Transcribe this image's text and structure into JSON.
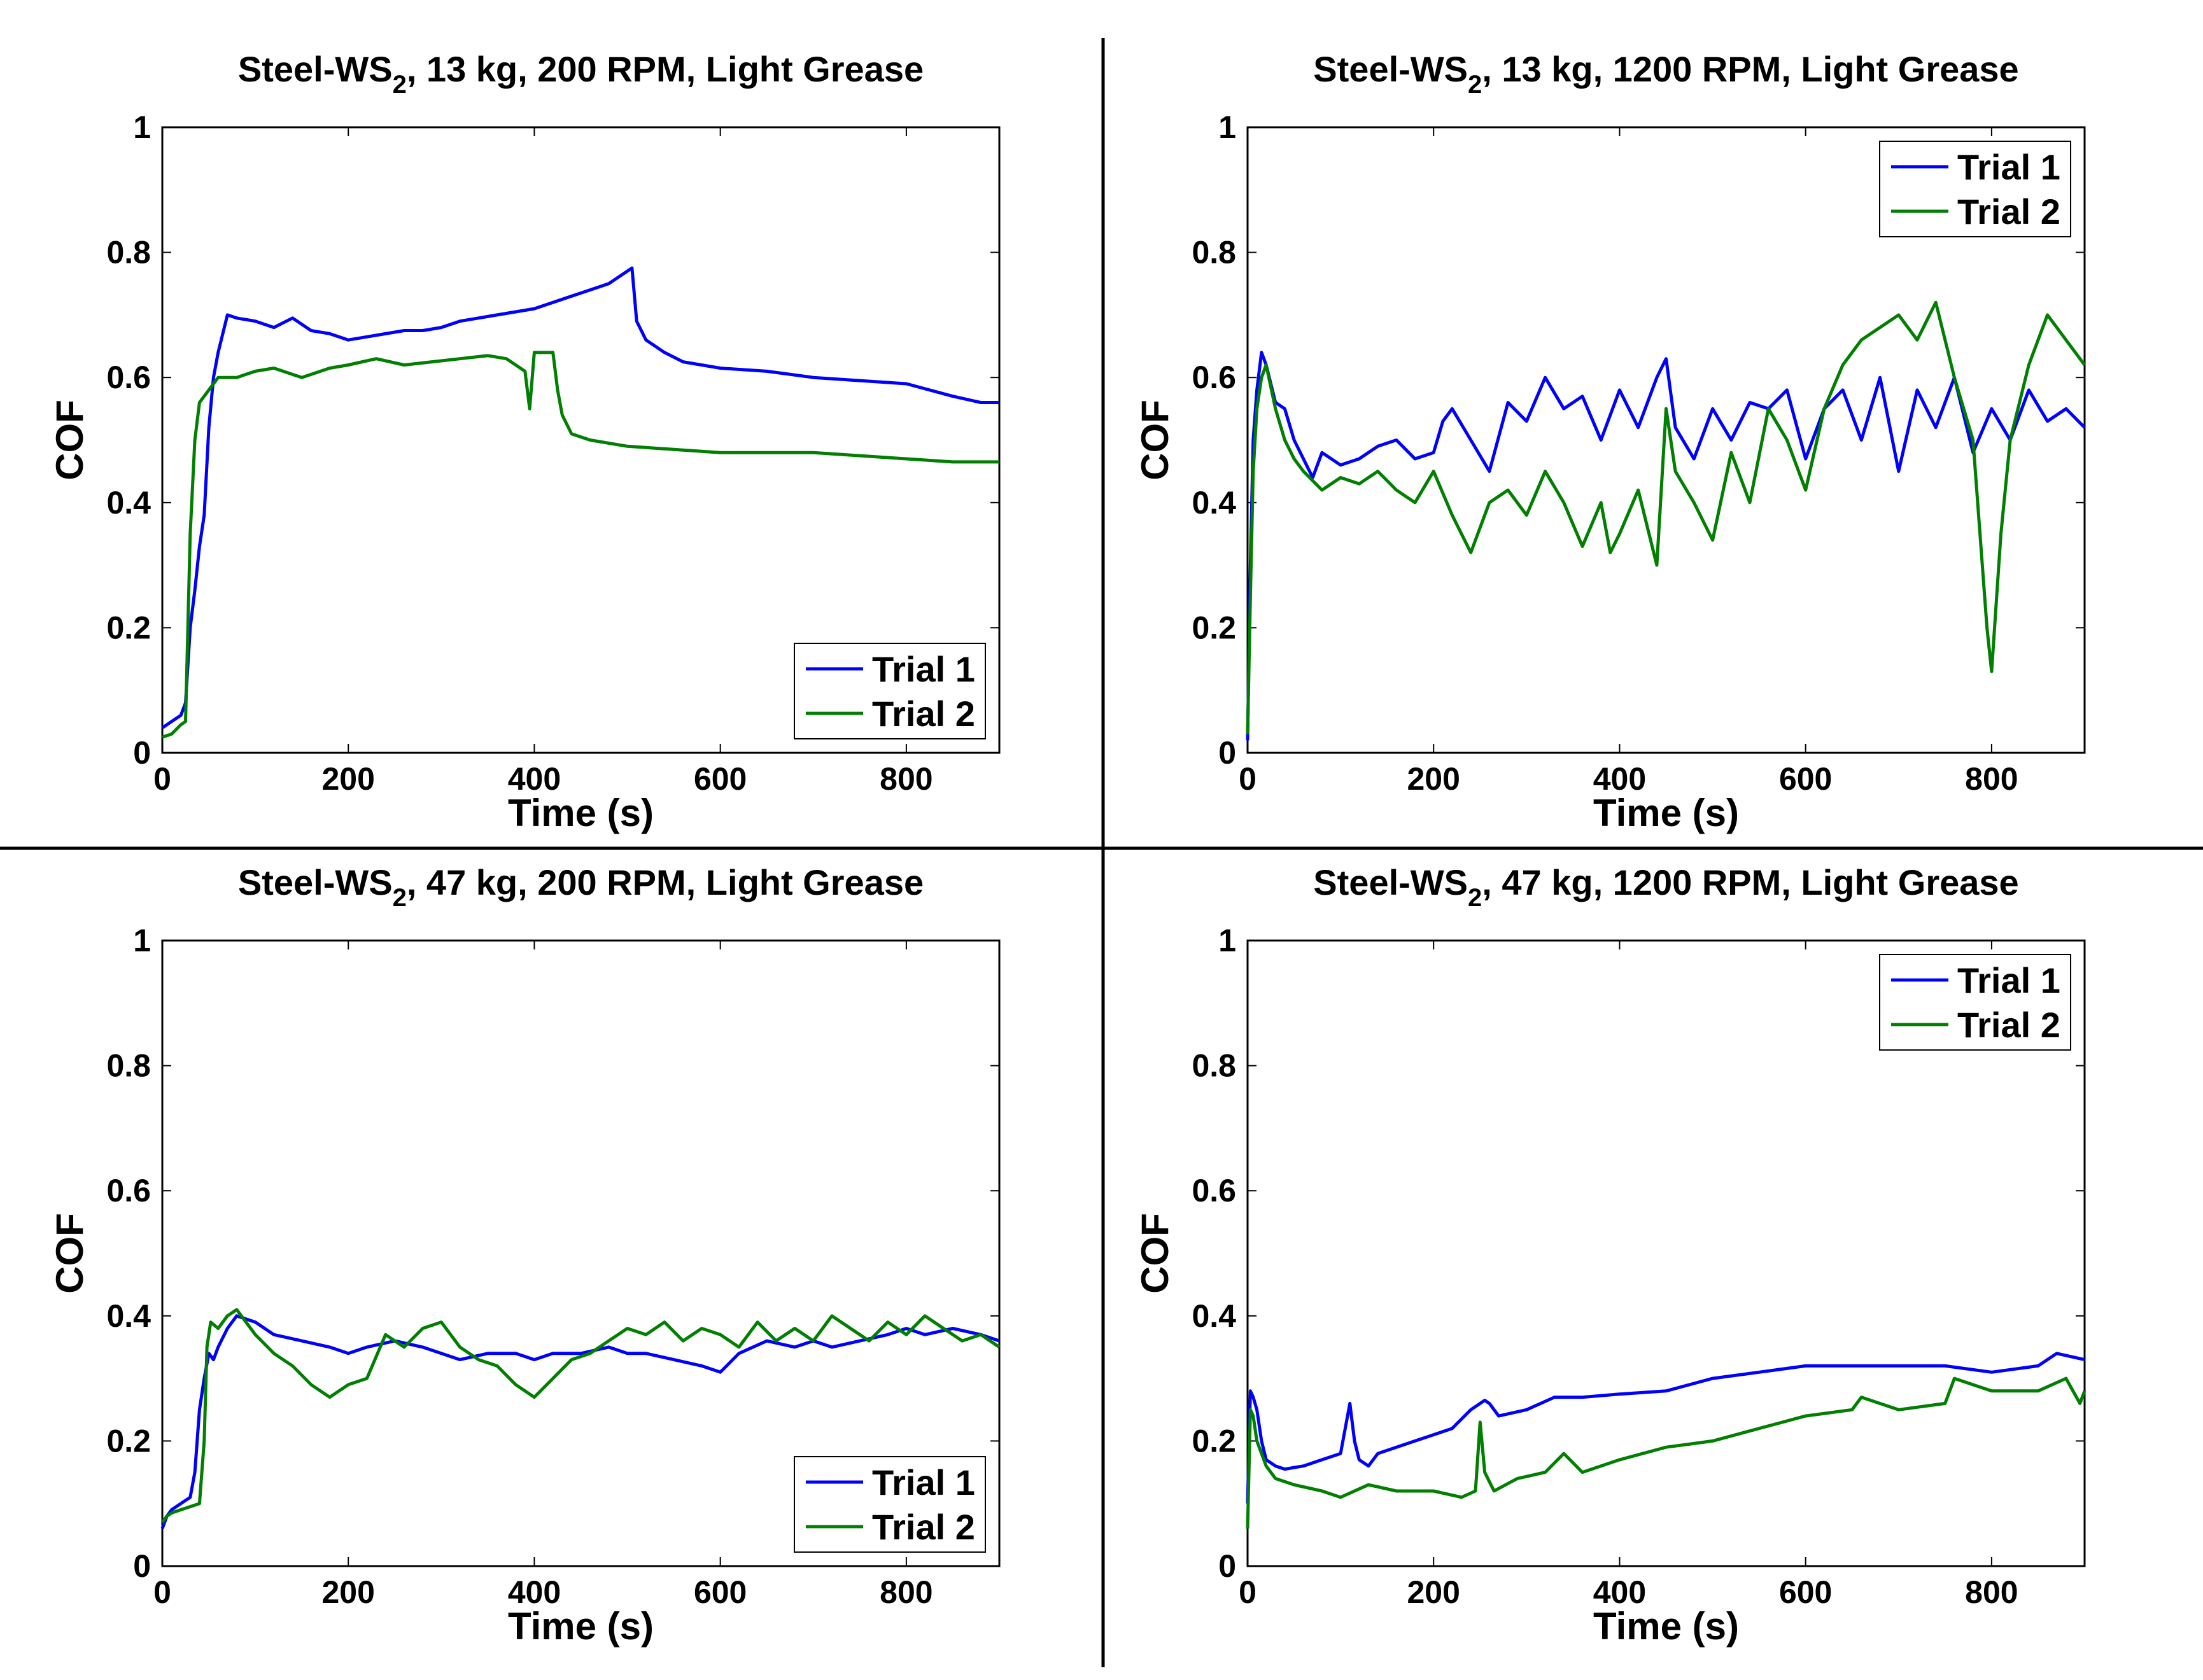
{
  "chart_data": [
    {
      "type": "line",
      "title": "Steel-WS2, 13 kg, 200 RPM, Light Grease",
      "title_main": "Steel-WS",
      "title_sub": "2",
      "title_rest": ", 13 kg, 200 RPM, Light Grease",
      "xlabel": "Time (s)",
      "ylabel": "COF",
      "xlim": [
        0,
        900
      ],
      "ylim": [
        0,
        1
      ],
      "xticks": [
        0,
        200,
        400,
        600,
        800
      ],
      "yticks": [
        0,
        0.2,
        0.4,
        0.6,
        0.8,
        1
      ],
      "ytick_labels": [
        "0",
        "0.2",
        "0.4",
        "0.6",
        "0.8",
        "1"
      ],
      "legend_position": "bottom-right",
      "series": [
        {
          "name": "Trial 1",
          "color": "#0000ff",
          "x": [
            0,
            10,
            20,
            25,
            30,
            35,
            40,
            45,
            50,
            55,
            60,
            70,
            80,
            100,
            120,
            140,
            160,
            180,
            200,
            220,
            240,
            260,
            280,
            300,
            320,
            340,
            360,
            380,
            400,
            420,
            440,
            460,
            480,
            490,
            500,
            505,
            510,
            520,
            540,
            560,
            600,
            650,
            700,
            750,
            800,
            850,
            880,
            900
          ],
          "y": [
            0.04,
            0.05,
            0.06,
            0.08,
            0.2,
            0.26,
            0.33,
            0.38,
            0.52,
            0.6,
            0.64,
            0.7,
            0.695,
            0.69,
            0.68,
            0.695,
            0.675,
            0.67,
            0.66,
            0.665,
            0.67,
            0.675,
            0.675,
            0.68,
            0.69,
            0.695,
            0.7,
            0.705,
            0.71,
            0.72,
            0.73,
            0.74,
            0.75,
            0.76,
            0.77,
            0.775,
            0.69,
            0.66,
            0.64,
            0.625,
            0.615,
            0.61,
            0.6,
            0.595,
            0.59,
            0.57,
            0.56,
            0.56
          ]
        },
        {
          "name": "Trial 2",
          "color": "#007f00",
          "x": [
            0,
            10,
            20,
            25,
            30,
            35,
            40,
            50,
            60,
            80,
            100,
            120,
            150,
            180,
            200,
            230,
            260,
            290,
            320,
            350,
            370,
            390,
            395,
            400,
            410,
            420,
            425,
            430,
            440,
            460,
            500,
            550,
            600,
            700,
            800,
            850,
            900
          ],
          "y": [
            0.025,
            0.03,
            0.045,
            0.05,
            0.35,
            0.5,
            0.56,
            0.58,
            0.6,
            0.6,
            0.61,
            0.615,
            0.6,
            0.615,
            0.62,
            0.63,
            0.62,
            0.625,
            0.63,
            0.635,
            0.63,
            0.61,
            0.55,
            0.64,
            0.64,
            0.64,
            0.58,
            0.54,
            0.51,
            0.5,
            0.49,
            0.485,
            0.48,
            0.48,
            0.47,
            0.465,
            0.465
          ]
        }
      ]
    },
    {
      "type": "line",
      "title": "Steel-WS2, 13 kg, 1200 RPM, Light Grease",
      "title_main": "Steel-WS",
      "title_sub": "2",
      "title_rest": ", 13 kg, 1200 RPM, Light Grease",
      "xlabel": "Time (s)",
      "ylabel": "COF",
      "xlim": [
        0,
        900
      ],
      "ylim": [
        0,
        1
      ],
      "xticks": [
        0,
        200,
        400,
        600,
        800
      ],
      "yticks": [
        0,
        0.2,
        0.4,
        0.6,
        0.8,
        1
      ],
      "ytick_labels": [
        "0",
        "0.2",
        "0.4",
        "0.6",
        "0.8",
        "1"
      ],
      "legend_position": "top-right",
      "series": [
        {
          "name": "Trial 1",
          "color": "#0000ff",
          "x": [
            0,
            3,
            6,
            10,
            15,
            20,
            30,
            40,
            50,
            60,
            70,
            80,
            100,
            120,
            140,
            160,
            180,
            200,
            210,
            220,
            240,
            260,
            280,
            300,
            320,
            340,
            360,
            380,
            400,
            420,
            440,
            450,
            460,
            480,
            500,
            520,
            540,
            560,
            580,
            600,
            620,
            640,
            660,
            680,
            700,
            720,
            740,
            760,
            780,
            800,
            820,
            840,
            860,
            880,
            900
          ],
          "y": [
            0.02,
            0.3,
            0.5,
            0.58,
            0.64,
            0.62,
            0.56,
            0.55,
            0.5,
            0.47,
            0.44,
            0.48,
            0.46,
            0.47,
            0.49,
            0.5,
            0.47,
            0.48,
            0.53,
            0.55,
            0.5,
            0.45,
            0.56,
            0.53,
            0.6,
            0.55,
            0.57,
            0.5,
            0.58,
            0.52,
            0.6,
            0.63,
            0.52,
            0.47,
            0.55,
            0.5,
            0.56,
            0.55,
            0.58,
            0.47,
            0.55,
            0.58,
            0.5,
            0.6,
            0.45,
            0.58,
            0.52,
            0.6,
            0.48,
            0.55,
            0.5,
            0.58,
            0.53,
            0.55,
            0.52
          ]
        },
        {
          "name": "Trial 2",
          "color": "#007f00",
          "x": [
            0,
            3,
            6,
            10,
            15,
            20,
            30,
            40,
            50,
            60,
            80,
            100,
            120,
            140,
            160,
            180,
            200,
            220,
            240,
            260,
            280,
            300,
            320,
            340,
            360,
            380,
            390,
            400,
            420,
            440,
            450,
            460,
            480,
            500,
            520,
            540,
            560,
            580,
            600,
            620,
            640,
            660,
            680,
            700,
            720,
            740,
            760,
            780,
            790,
            795,
            800,
            810,
            820,
            840,
            860,
            880,
            900
          ],
          "y": [
            0.03,
            0.25,
            0.45,
            0.55,
            0.6,
            0.62,
            0.55,
            0.5,
            0.47,
            0.45,
            0.42,
            0.44,
            0.43,
            0.45,
            0.42,
            0.4,
            0.45,
            0.38,
            0.32,
            0.4,
            0.42,
            0.38,
            0.45,
            0.4,
            0.33,
            0.4,
            0.32,
            0.35,
            0.42,
            0.3,
            0.55,
            0.45,
            0.4,
            0.34,
            0.48,
            0.4,
            0.55,
            0.5,
            0.42,
            0.55,
            0.62,
            0.66,
            0.68,
            0.7,
            0.66,
            0.72,
            0.6,
            0.5,
            0.3,
            0.2,
            0.13,
            0.35,
            0.5,
            0.62,
            0.7,
            0.66,
            0.62
          ]
        }
      ]
    },
    {
      "type": "line",
      "title": "Steel-WS2, 47 kg, 200 RPM, Light Grease",
      "title_main": "Steel-WS",
      "title_sub": "2",
      "title_rest": ", 47 kg, 200 RPM, Light Grease",
      "xlabel": "Time (s)",
      "ylabel": "COF",
      "xlim": [
        0,
        900
      ],
      "ylim": [
        0,
        1
      ],
      "xticks": [
        0,
        200,
        400,
        600,
        800
      ],
      "yticks": [
        0,
        0.2,
        0.4,
        0.6,
        0.8,
        1
      ],
      "ytick_labels": [
        "0",
        "0.2",
        "0.4",
        "0.6",
        "0.8",
        "1"
      ],
      "legend_position": "bottom-right",
      "series": [
        {
          "name": "Trial 1",
          "color": "#0000ff",
          "x": [
            0,
            5,
            10,
            20,
            30,
            35,
            40,
            45,
            50,
            55,
            60,
            70,
            80,
            100,
            120,
            150,
            180,
            200,
            220,
            250,
            280,
            300,
            320,
            350,
            380,
            400,
            420,
            450,
            480,
            500,
            520,
            550,
            580,
            600,
            620,
            650,
            680,
            700,
            720,
            750,
            780,
            800,
            820,
            850,
            880,
            900
          ],
          "y": [
            0.06,
            0.08,
            0.09,
            0.1,
            0.11,
            0.15,
            0.25,
            0.3,
            0.34,
            0.33,
            0.35,
            0.38,
            0.4,
            0.39,
            0.37,
            0.36,
            0.35,
            0.34,
            0.35,
            0.36,
            0.35,
            0.34,
            0.33,
            0.34,
            0.34,
            0.33,
            0.34,
            0.34,
            0.35,
            0.34,
            0.34,
            0.33,
            0.32,
            0.31,
            0.34,
            0.36,
            0.35,
            0.36,
            0.35,
            0.36,
            0.37,
            0.38,
            0.37,
            0.38,
            0.37,
            0.36
          ]
        },
        {
          "name": "Trial 2",
          "color": "#007f00",
          "x": [
            0,
            5,
            10,
            20,
            30,
            40,
            45,
            48,
            52,
            60,
            70,
            80,
            100,
            120,
            140,
            160,
            180,
            200,
            220,
            240,
            260,
            280,
            300,
            320,
            340,
            360,
            380,
            400,
            420,
            440,
            460,
            480,
            500,
            520,
            540,
            560,
            580,
            600,
            620,
            640,
            660,
            680,
            700,
            720,
            740,
            760,
            780,
            800,
            820,
            840,
            860,
            880,
            900
          ],
          "y": [
            0.07,
            0.08,
            0.085,
            0.09,
            0.095,
            0.1,
            0.2,
            0.35,
            0.39,
            0.38,
            0.4,
            0.41,
            0.37,
            0.34,
            0.32,
            0.29,
            0.27,
            0.29,
            0.3,
            0.37,
            0.35,
            0.38,
            0.39,
            0.35,
            0.33,
            0.32,
            0.29,
            0.27,
            0.3,
            0.33,
            0.34,
            0.36,
            0.38,
            0.37,
            0.39,
            0.36,
            0.38,
            0.37,
            0.35,
            0.39,
            0.36,
            0.38,
            0.36,
            0.4,
            0.38,
            0.36,
            0.39,
            0.37,
            0.4,
            0.38,
            0.36,
            0.37,
            0.35
          ]
        }
      ]
    },
    {
      "type": "line",
      "title": "Steel-WS2, 47 kg, 1200 RPM, Light Grease",
      "title_main": "Steel-WS",
      "title_sub": "2",
      "title_rest": ", 47 kg, 1200 RPM, Light Grease",
      "xlabel": "Time (s)",
      "ylabel": "COF",
      "xlim": [
        0,
        900
      ],
      "ylim": [
        0,
        1
      ],
      "xticks": [
        0,
        200,
        400,
        600,
        800
      ],
      "yticks": [
        0,
        0.2,
        0.4,
        0.6,
        0.8,
        1
      ],
      "ytick_labels": [
        "0",
        "0.2",
        "0.4",
        "0.6",
        "0.8",
        "1"
      ],
      "legend_position": "top-right",
      "series": [
        {
          "name": "Trial 1",
          "color": "#0000ff",
          "x": [
            0,
            3,
            6,
            10,
            15,
            20,
            30,
            40,
            60,
            80,
            100,
            110,
            115,
            120,
            130,
            140,
            160,
            180,
            200,
            220,
            240,
            255,
            260,
            270,
            300,
            330,
            360,
            400,
            450,
            500,
            550,
            600,
            650,
            700,
            750,
            800,
            850,
            870,
            900
          ],
          "y": [
            0.1,
            0.28,
            0.27,
            0.25,
            0.2,
            0.17,
            0.16,
            0.155,
            0.16,
            0.17,
            0.18,
            0.26,
            0.2,
            0.17,
            0.16,
            0.18,
            0.19,
            0.2,
            0.21,
            0.22,
            0.25,
            0.265,
            0.26,
            0.24,
            0.25,
            0.27,
            0.27,
            0.275,
            0.28,
            0.3,
            0.31,
            0.32,
            0.32,
            0.32,
            0.32,
            0.31,
            0.32,
            0.34,
            0.33
          ]
        },
        {
          "name": "Trial 2",
          "color": "#007f00",
          "x": [
            0,
            3,
            6,
            10,
            20,
            30,
            50,
            80,
            100,
            130,
            160,
            200,
            230,
            245,
            250,
            255,
            265,
            290,
            320,
            340,
            360,
            400,
            450,
            500,
            550,
            600,
            650,
            660,
            700,
            750,
            760,
            800,
            850,
            880,
            895,
            900
          ],
          "y": [
            0.06,
            0.25,
            0.24,
            0.2,
            0.16,
            0.14,
            0.13,
            0.12,
            0.11,
            0.13,
            0.12,
            0.12,
            0.11,
            0.12,
            0.23,
            0.15,
            0.12,
            0.14,
            0.15,
            0.18,
            0.15,
            0.17,
            0.19,
            0.2,
            0.22,
            0.24,
            0.25,
            0.27,
            0.25,
            0.26,
            0.3,
            0.28,
            0.28,
            0.3,
            0.26,
            0.28
          ]
        }
      ]
    }
  ]
}
